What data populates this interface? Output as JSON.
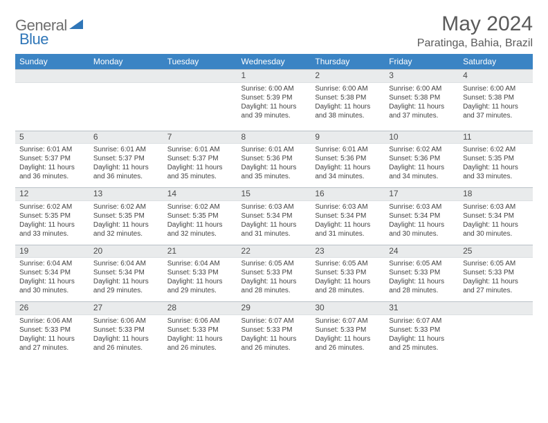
{
  "logo": {
    "textA": "General",
    "textB": "Blue"
  },
  "title": "May 2024",
  "location": "Paratinga, Bahia, Brazil",
  "colors": {
    "headerBg": "#3b84c4",
    "headerText": "#ffffff",
    "dayNumBg": "#e9ebec",
    "dayNumBorderTop": "#b9c0c6",
    "bodyText": "#424242",
    "logoGray": "#6e6e6e",
    "logoBlue": "#2f76b8"
  },
  "dow": [
    "Sunday",
    "Monday",
    "Tuesday",
    "Wednesday",
    "Thursday",
    "Friday",
    "Saturday"
  ],
  "weeks": [
    [
      null,
      null,
      null,
      {
        "n": "1",
        "sr": "6:00 AM",
        "ss": "5:39 PM",
        "dl": "11 hours and 39 minutes."
      },
      {
        "n": "2",
        "sr": "6:00 AM",
        "ss": "5:38 PM",
        "dl": "11 hours and 38 minutes."
      },
      {
        "n": "3",
        "sr": "6:00 AM",
        "ss": "5:38 PM",
        "dl": "11 hours and 37 minutes."
      },
      {
        "n": "4",
        "sr": "6:00 AM",
        "ss": "5:38 PM",
        "dl": "11 hours and 37 minutes."
      }
    ],
    [
      {
        "n": "5",
        "sr": "6:01 AM",
        "ss": "5:37 PM",
        "dl": "11 hours and 36 minutes."
      },
      {
        "n": "6",
        "sr": "6:01 AM",
        "ss": "5:37 PM",
        "dl": "11 hours and 36 minutes."
      },
      {
        "n": "7",
        "sr": "6:01 AM",
        "ss": "5:37 PM",
        "dl": "11 hours and 35 minutes."
      },
      {
        "n": "8",
        "sr": "6:01 AM",
        "ss": "5:36 PM",
        "dl": "11 hours and 35 minutes."
      },
      {
        "n": "9",
        "sr": "6:01 AM",
        "ss": "5:36 PM",
        "dl": "11 hours and 34 minutes."
      },
      {
        "n": "10",
        "sr": "6:02 AM",
        "ss": "5:36 PM",
        "dl": "11 hours and 34 minutes."
      },
      {
        "n": "11",
        "sr": "6:02 AM",
        "ss": "5:35 PM",
        "dl": "11 hours and 33 minutes."
      }
    ],
    [
      {
        "n": "12",
        "sr": "6:02 AM",
        "ss": "5:35 PM",
        "dl": "11 hours and 33 minutes."
      },
      {
        "n": "13",
        "sr": "6:02 AM",
        "ss": "5:35 PM",
        "dl": "11 hours and 32 minutes."
      },
      {
        "n": "14",
        "sr": "6:02 AM",
        "ss": "5:35 PM",
        "dl": "11 hours and 32 minutes."
      },
      {
        "n": "15",
        "sr": "6:03 AM",
        "ss": "5:34 PM",
        "dl": "11 hours and 31 minutes."
      },
      {
        "n": "16",
        "sr": "6:03 AM",
        "ss": "5:34 PM",
        "dl": "11 hours and 31 minutes."
      },
      {
        "n": "17",
        "sr": "6:03 AM",
        "ss": "5:34 PM",
        "dl": "11 hours and 30 minutes."
      },
      {
        "n": "18",
        "sr": "6:03 AM",
        "ss": "5:34 PM",
        "dl": "11 hours and 30 minutes."
      }
    ],
    [
      {
        "n": "19",
        "sr": "6:04 AM",
        "ss": "5:34 PM",
        "dl": "11 hours and 30 minutes."
      },
      {
        "n": "20",
        "sr": "6:04 AM",
        "ss": "5:34 PM",
        "dl": "11 hours and 29 minutes."
      },
      {
        "n": "21",
        "sr": "6:04 AM",
        "ss": "5:33 PM",
        "dl": "11 hours and 29 minutes."
      },
      {
        "n": "22",
        "sr": "6:05 AM",
        "ss": "5:33 PM",
        "dl": "11 hours and 28 minutes."
      },
      {
        "n": "23",
        "sr": "6:05 AM",
        "ss": "5:33 PM",
        "dl": "11 hours and 28 minutes."
      },
      {
        "n": "24",
        "sr": "6:05 AM",
        "ss": "5:33 PM",
        "dl": "11 hours and 28 minutes."
      },
      {
        "n": "25",
        "sr": "6:05 AM",
        "ss": "5:33 PM",
        "dl": "11 hours and 27 minutes."
      }
    ],
    [
      {
        "n": "26",
        "sr": "6:06 AM",
        "ss": "5:33 PM",
        "dl": "11 hours and 27 minutes."
      },
      {
        "n": "27",
        "sr": "6:06 AM",
        "ss": "5:33 PM",
        "dl": "11 hours and 26 minutes."
      },
      {
        "n": "28",
        "sr": "6:06 AM",
        "ss": "5:33 PM",
        "dl": "11 hours and 26 minutes."
      },
      {
        "n": "29",
        "sr": "6:07 AM",
        "ss": "5:33 PM",
        "dl": "11 hours and 26 minutes."
      },
      {
        "n": "30",
        "sr": "6:07 AM",
        "ss": "5:33 PM",
        "dl": "11 hours and 26 minutes."
      },
      {
        "n": "31",
        "sr": "6:07 AM",
        "ss": "5:33 PM",
        "dl": "11 hours and 25 minutes."
      },
      null
    ]
  ],
  "labels": {
    "sunrise": "Sunrise: ",
    "sunset": "Sunset: ",
    "daylight": "Daylight: "
  }
}
